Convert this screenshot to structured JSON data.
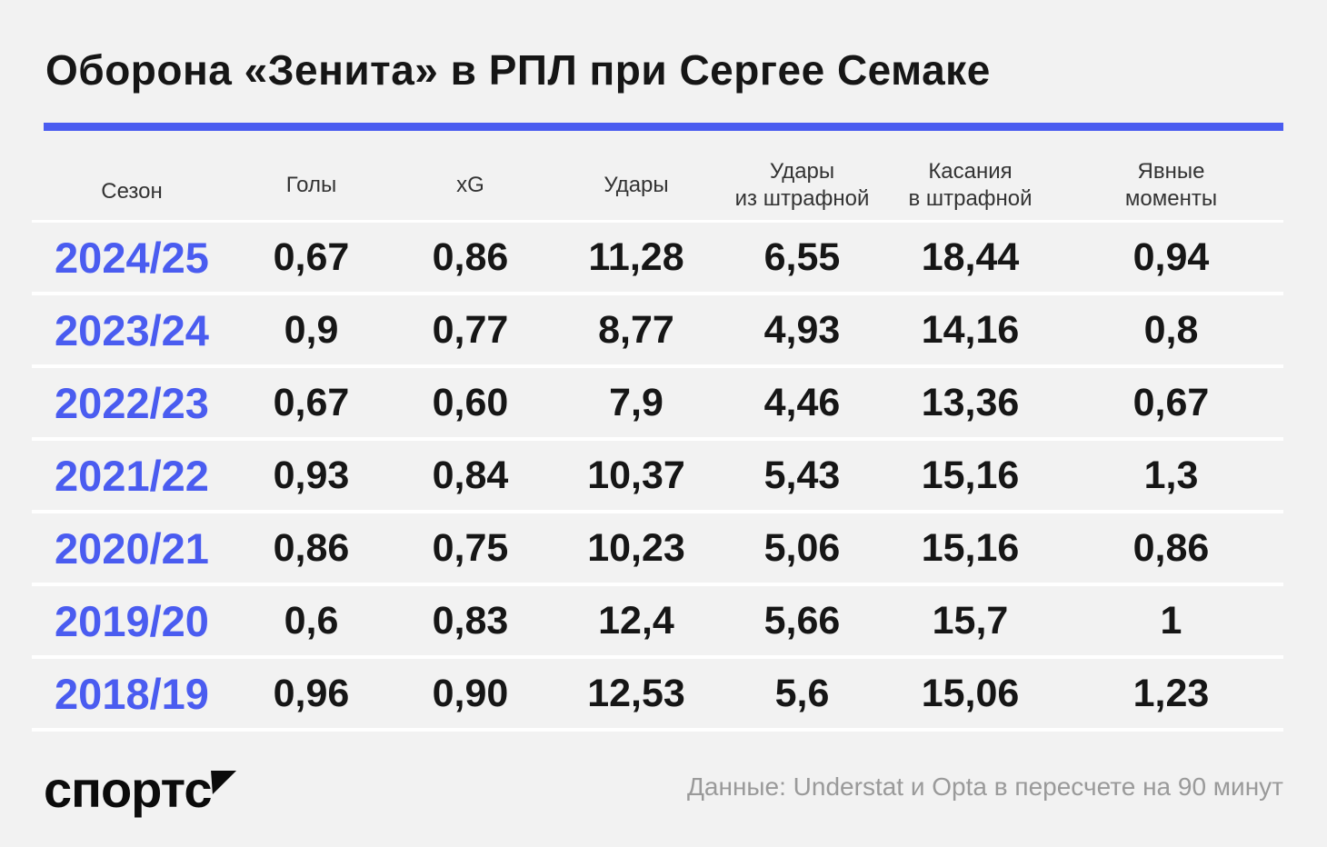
{
  "title": "Оборона «Зенита» в РПЛ при Сергее Семаке",
  "colors": {
    "accent": "#4a5cf0",
    "background": "#f2f2f2",
    "text": "#161616",
    "muted": "#9a9a9a"
  },
  "table": {
    "headers": [
      "Сезон",
      "Голы",
      "xG",
      "Удары",
      "Удары\nиз штрафной",
      "Касания\nв штрафной",
      "Явные\nмоменты"
    ],
    "rows": [
      [
        "2024/25",
        "0,67",
        "0,86",
        "11,28",
        "6,55",
        "18,44",
        "0,94"
      ],
      [
        "2023/24",
        "0,9",
        "0,77",
        "8,77",
        "4,93",
        "14,16",
        "0,8"
      ],
      [
        "2022/23",
        "0,67",
        "0,60",
        "7,9",
        "4,46",
        "13,36",
        "0,67"
      ],
      [
        "2021/22",
        "0,93",
        "0,84",
        "10,37",
        "5,43",
        "15,16",
        "1,3"
      ],
      [
        "2020/21",
        "0,86",
        "0,75",
        "10,23",
        "5,06",
        "15,16",
        "0,86"
      ],
      [
        "2019/20",
        "0,6",
        "0,83",
        "12,4",
        "5,66",
        "15,7",
        "1"
      ],
      [
        "2018/19",
        "0,96",
        "0,90",
        "12,53",
        "5,6",
        "15,06",
        "1,23"
      ]
    ]
  },
  "chart_data": {
    "type": "table",
    "title": "Оборона «Зенита» в РПЛ при Сергее Семаке",
    "columns": [
      "Сезон",
      "Голы",
      "xG",
      "Удары",
      "Удары из штрафной",
      "Касания в штрафной",
      "Явные моменты"
    ],
    "categories": [
      "2024/25",
      "2023/24",
      "2022/23",
      "2021/22",
      "2020/21",
      "2019/20",
      "2018/19"
    ],
    "series": [
      {
        "name": "Голы",
        "values": [
          0.67,
          0.9,
          0.67,
          0.93,
          0.86,
          0.6,
          0.96
        ]
      },
      {
        "name": "xG",
        "values": [
          0.86,
          0.77,
          0.6,
          0.84,
          0.75,
          0.83,
          0.9
        ]
      },
      {
        "name": "Удары",
        "values": [
          11.28,
          8.77,
          7.9,
          10.37,
          10.23,
          12.4,
          12.53
        ]
      },
      {
        "name": "Удары из штрафной",
        "values": [
          6.55,
          4.93,
          4.46,
          5.43,
          5.06,
          5.66,
          5.6
        ]
      },
      {
        "name": "Касания в штрафной",
        "values": [
          18.44,
          14.16,
          13.36,
          15.16,
          15.16,
          15.7,
          15.06
        ]
      },
      {
        "name": "Явные моменты",
        "values": [
          0.94,
          0.8,
          0.67,
          1.3,
          0.86,
          1,
          1.23
        ]
      }
    ]
  },
  "footer": {
    "logo": "спортс",
    "source": "Данные: Understat и Opta в пересчете на 90 минут"
  }
}
